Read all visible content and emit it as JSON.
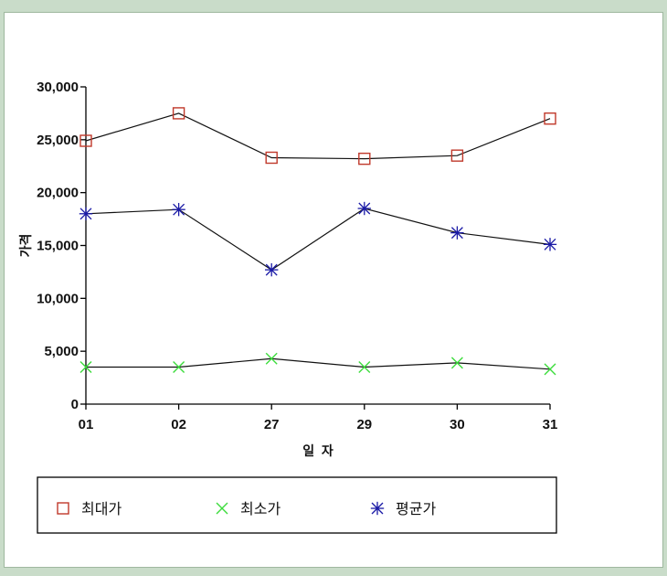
{
  "chart_data": {
    "type": "line",
    "categories": [
      "01",
      "02",
      "27",
      "29",
      "30",
      "31"
    ],
    "xlabel": "일  자",
    "ylabel": "가격",
    "ylim": [
      0,
      30000
    ],
    "yticks": [
      "0",
      "5,000",
      "10,000",
      "15,000",
      "20,000",
      "25,000",
      "30,000"
    ],
    "ytick_values": [
      0,
      5000,
      10000,
      15000,
      20000,
      25000,
      30000
    ],
    "grid": false,
    "legend_position": "bottom",
    "series": [
      {
        "name": "최대가",
        "marker": "square",
        "color": "#c0392b",
        "values": [
          24900,
          27500,
          23300,
          23200,
          23500,
          27000
        ]
      },
      {
        "name": "최소가",
        "marker": "x",
        "color": "#3ddc3d",
        "values": [
          3500,
          3500,
          4300,
          3500,
          3900,
          3300
        ]
      },
      {
        "name": "평균가",
        "marker": "asterisk",
        "color": "#1a1aa6",
        "values": [
          18000,
          18400,
          12700,
          18500,
          16200,
          15100
        ]
      }
    ]
  }
}
